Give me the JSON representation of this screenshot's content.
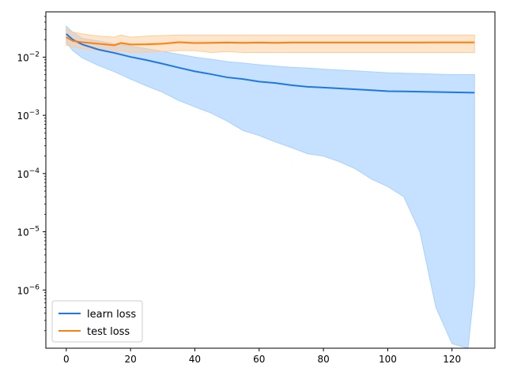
{
  "chart_data": {
    "type": "line",
    "title": "",
    "xlabel": "",
    "ylabel": "",
    "xlim": [
      -6.35,
      133.35
    ],
    "ylim": [
      1e-07,
      0.06
    ],
    "yscale": "log",
    "grid": false,
    "legend_position": "lower-left",
    "x_ticks": [
      0,
      20,
      40,
      60,
      80,
      100,
      120
    ],
    "y_ticks": [
      {
        "value": 1e-06,
        "base": "10",
        "exp": "−6"
      },
      {
        "value": 1e-05,
        "base": "10",
        "exp": "−5"
      },
      {
        "value": 0.0001,
        "base": "10",
        "exp": "−4"
      },
      {
        "value": 0.001,
        "base": "10",
        "exp": "−3"
      },
      {
        "value": 0.01,
        "base": "10",
        "exp": "−2"
      }
    ],
    "series": [
      {
        "name": "learn loss",
        "color": "#1f77e4",
        "band_color": "#a8d1ff",
        "x": [
          0,
          2,
          5,
          10,
          15,
          20,
          25,
          30,
          35,
          40,
          45,
          50,
          55,
          60,
          65,
          70,
          75,
          80,
          85,
          90,
          95,
          100,
          105,
          110,
          115,
          120,
          125,
          127
        ],
        "y": [
          0.025,
          0.02,
          0.0165,
          0.0135,
          0.0118,
          0.0101,
          0.0089,
          0.0077,
          0.0066,
          0.0057,
          0.0051,
          0.0045,
          0.0042,
          0.0038,
          0.0036,
          0.0033,
          0.0031,
          0.003,
          0.0029,
          0.0028,
          0.0027,
          0.0026,
          0.00258,
          0.00255,
          0.00252,
          0.00249,
          0.00246,
          0.00245
        ],
        "band_upper": [
          0.034,
          0.027,
          0.021,
          0.019,
          0.017,
          0.0155,
          0.014,
          0.0125,
          0.0112,
          0.01,
          0.0092,
          0.0084,
          0.0079,
          0.0074,
          0.007,
          0.0067,
          0.0065,
          0.0062,
          0.006,
          0.0058,
          0.0056,
          0.0054,
          0.0053,
          0.0052,
          0.0051,
          0.005,
          0.005,
          0.005
        ],
        "band_lower": [
          0.018,
          0.013,
          0.0097,
          0.0072,
          0.0056,
          0.0042,
          0.0032,
          0.0025,
          0.0018,
          0.0014,
          0.0011,
          0.0008,
          0.00055,
          0.00045,
          0.00035,
          0.00028,
          0.00022,
          0.0002,
          0.00016,
          0.00012,
          8e-05,
          6e-05,
          4e-05,
          1e-05,
          5e-07,
          1.2e-07,
          1e-07,
          1.2e-06
        ]
      },
      {
        "name": "test loss",
        "color": "#ff7f0e",
        "band_color": "#ffcc99",
        "x": [
          0,
          2,
          5,
          10,
          15,
          17,
          20,
          25,
          30,
          35,
          40,
          45,
          50,
          55,
          60,
          65,
          70,
          75,
          80,
          85,
          90,
          95,
          100,
          105,
          110,
          115,
          120,
          125,
          127
        ],
        "y": [
          0.022,
          0.019,
          0.018,
          0.017,
          0.016,
          0.0175,
          0.0165,
          0.0166,
          0.017,
          0.018,
          0.0175,
          0.0176,
          0.0178,
          0.0176,
          0.0178,
          0.0176,
          0.0178,
          0.0178,
          0.0178,
          0.0178,
          0.0178,
          0.0178,
          0.0178,
          0.0178,
          0.0178,
          0.0179,
          0.0179,
          0.0179,
          0.0179
        ],
        "band_upper": [
          0.03,
          0.027,
          0.025,
          0.023,
          0.022,
          0.024,
          0.022,
          0.023,
          0.0235,
          0.024,
          0.024,
          0.024,
          0.024,
          0.024,
          0.024,
          0.024,
          0.024,
          0.024,
          0.024,
          0.024,
          0.024,
          0.024,
          0.024,
          0.024,
          0.024,
          0.024,
          0.024,
          0.024,
          0.024
        ],
        "band_lower": [
          0.016,
          0.015,
          0.014,
          0.013,
          0.012,
          0.013,
          0.012,
          0.012,
          0.0125,
          0.013,
          0.013,
          0.012,
          0.0125,
          0.012,
          0.012,
          0.012,
          0.012,
          0.012,
          0.012,
          0.012,
          0.012,
          0.012,
          0.012,
          0.012,
          0.012,
          0.012,
          0.012,
          0.012,
          0.012
        ]
      }
    ]
  }
}
